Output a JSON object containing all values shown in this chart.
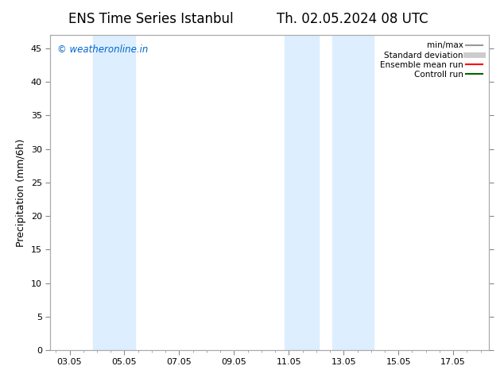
{
  "title_left": "ENS Time Series Istanbul",
  "title_right": "Th. 02.05.2024 08 UTC",
  "ylabel": "Precipitation (mm/6h)",
  "background_color": "#ffffff",
  "plot_bg_color": "#ffffff",
  "ylim": [
    0,
    47
  ],
  "yticks": [
    0,
    5,
    10,
    15,
    20,
    25,
    30,
    35,
    40,
    45
  ],
  "xtick_labels": [
    "03.05",
    "05.05",
    "07.05",
    "09.05",
    "11.05",
    "13.05",
    "15.05",
    "17.05"
  ],
  "shaded_color": "#ddeeff",
  "watermark_text": "© weatheronline.in",
  "watermark_color": "#0066cc",
  "watermark_fontsize": 8.5,
  "legend_items": [
    {
      "label": "min/max",
      "color": "#999999",
      "lw": 1.5
    },
    {
      "label": "Standard deviation",
      "color": "#cccccc",
      "lw": 5
    },
    {
      "label": "Ensemble mean run",
      "color": "#ff0000",
      "lw": 1.5
    },
    {
      "label": "Controll run",
      "color": "#006600",
      "lw": 1.5
    }
  ],
  "title_fontsize": 12,
  "tick_fontsize": 8,
  "legend_fontsize": 7.5,
  "ylabel_fontsize": 9,
  "grid_color": "#dddddd",
  "axis_color": "#555555"
}
